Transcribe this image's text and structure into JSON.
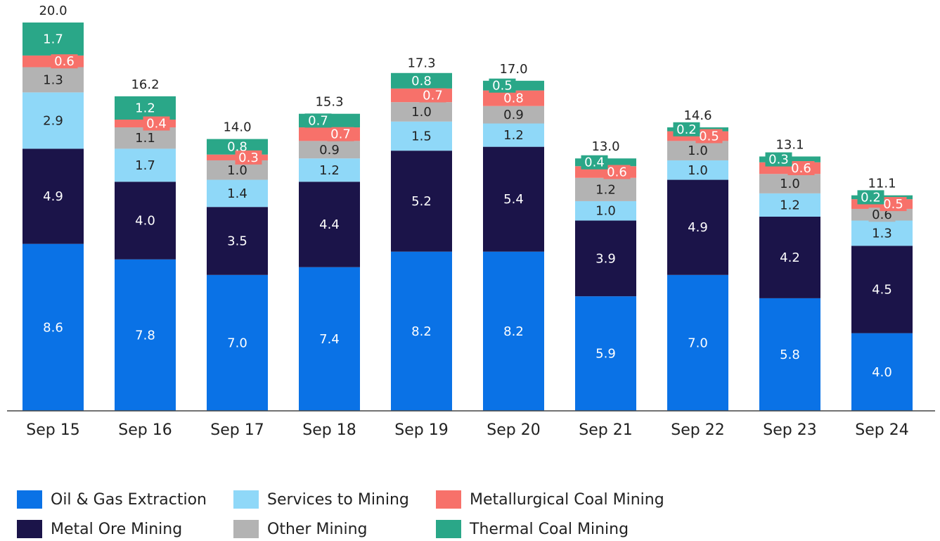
{
  "chart_data": {
    "type": "stacked-bar",
    "categories": [
      "Sep 15",
      "Sep 16",
      "Sep 17",
      "Sep 18",
      "Sep 19",
      "Sep 20",
      "Sep 21",
      "Sep 22",
      "Sep 23",
      "Sep 24"
    ],
    "series": [
      {
        "name": "Oil & Gas Extraction",
        "color": "#0a72e6",
        "values": [
          8.6,
          7.8,
          7.0,
          7.4,
          8.2,
          8.2,
          5.9,
          7.0,
          5.8,
          4.0
        ],
        "value_labels": [
          "8.6",
          "7.8",
          "7.0",
          "7.4",
          "8.2",
          "8.2",
          "5.9",
          "7.0",
          "5.8",
          "4.0"
        ]
      },
      {
        "name": "Metal Ore Mining",
        "color": "#1b1449",
        "values": [
          4.9,
          4.0,
          3.5,
          4.4,
          5.2,
          5.4,
          3.9,
          4.9,
          4.2,
          4.5
        ],
        "value_labels": [
          "4.9",
          "4.0",
          "3.5",
          "4.4",
          "5.2",
          "5.4",
          "3.9",
          "4.9",
          "4.2",
          "4.5"
        ]
      },
      {
        "name": "Services to Mining",
        "color": "#8fd8f8",
        "values": [
          2.9,
          1.7,
          1.4,
          1.2,
          1.5,
          1.2,
          1.0,
          1.0,
          1.2,
          1.3
        ],
        "value_labels": [
          "2.9",
          "1.7",
          "1.4",
          "1.2",
          "1.5",
          "1.2",
          "1.0",
          "1.0",
          "1.2",
          "1.3"
        ]
      },
      {
        "name": "Other Mining",
        "color": "#b3b3b3",
        "values": [
          1.3,
          1.1,
          1.0,
          0.9,
          1.0,
          0.9,
          1.2,
          1.0,
          1.0,
          0.6
        ],
        "value_labels": [
          "1.3",
          "1.1",
          "1.0",
          "0.9",
          "1.0",
          "0.9",
          "1.2",
          "1.0",
          "1.0",
          "0.6"
        ]
      },
      {
        "name": "Metallurgical Coal Mining",
        "color": "#f7716a",
        "values": [
          0.6,
          0.4,
          0.3,
          0.7,
          0.7,
          0.8,
          0.6,
          0.5,
          0.6,
          0.5
        ],
        "value_labels": [
          "0.6",
          "0.4",
          "0.3",
          "0.7",
          "0.7",
          "0.8",
          "0.6",
          "0.5",
          "0.6",
          "0.5"
        ]
      },
      {
        "name": "Thermal Coal Mining",
        "color": "#2aa788",
        "values": [
          1.7,
          1.2,
          0.8,
          0.7,
          0.8,
          0.5,
          0.4,
          0.2,
          0.3,
          0.2
        ],
        "value_labels": [
          "1.7",
          "1.2",
          "0.8",
          "0.7",
          "0.8",
          "0.5",
          "0.4",
          "0.2",
          "0.3",
          "0.2"
        ]
      }
    ],
    "totals": [
      20.0,
      16.2,
      14.0,
      15.3,
      17.3,
      17.0,
      13.0,
      14.6,
      13.1,
      11.1
    ],
    "total_labels": [
      "20.0",
      "16.2",
      "14.0",
      "15.3",
      "17.3",
      "17.0",
      "13.0",
      "14.6",
      "13.1",
      "11.1"
    ],
    "legend": "bottom-left"
  }
}
